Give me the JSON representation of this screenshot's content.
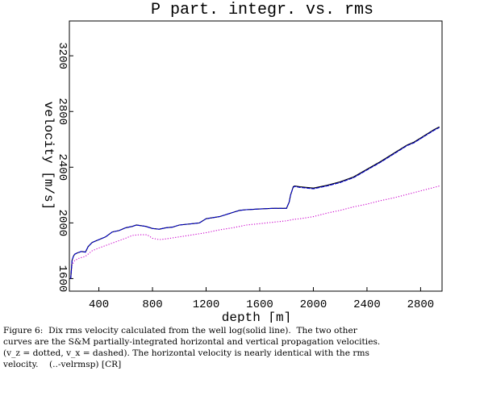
{
  "chart_data": {
    "type": "line",
    "title": "P part. integr. vs. rms",
    "xlabel": "depth [m]",
    "ylabel": "velocity [m/s]",
    "xlim": [
      180,
      2960
    ],
    "ylim": [
      1510,
      3450
    ],
    "x_ticks": [
      400,
      800,
      1200,
      1600,
      2000,
      2400,
      2800
    ],
    "y_ticks": [
      1600,
      2000,
      2400,
      2800,
      3200
    ],
    "grid": false,
    "legend": "none",
    "series": [
      {
        "style": "solid",
        "color": "#000000",
        "x": [
          190,
          200,
          210,
          220,
          240,
          270,
          300,
          320,
          350,
          400,
          450,
          500,
          550,
          600,
          650,
          680,
          750,
          800,
          850,
          900,
          950,
          1000,
          1100,
          1150,
          1200,
          1300,
          1400,
          1450,
          1500,
          1600,
          1700,
          1800,
          1820,
          1830,
          1840,
          1850,
          1860,
          1900,
          2000,
          2100,
          2200,
          2300,
          2400,
          2500,
          2600,
          2700,
          2750,
          2800,
          2900,
          2940
        ],
        "y": [
          1600,
          1730,
          1760,
          1775,
          1785,
          1795,
          1790,
          1830,
          1860,
          1880,
          1900,
          1935,
          1945,
          1965,
          1975,
          1985,
          1975,
          1960,
          1955,
          1965,
          1970,
          1985,
          1995,
          2000,
          2030,
          2045,
          2075,
          2090,
          2095,
          2100,
          2105,
          2105,
          2150,
          2200,
          2230,
          2260,
          2265,
          2260,
          2250,
          2270,
          2295,
          2330,
          2385,
          2440,
          2500,
          2560,
          2580,
          2610,
          2670,
          2690
        ]
      },
      {
        "style": "dashed",
        "color": "#0000cc",
        "x": [
          190,
          200,
          210,
          220,
          240,
          270,
          300,
          320,
          350,
          400,
          450,
          500,
          550,
          600,
          650,
          680,
          750,
          800,
          850,
          900,
          950,
          1000,
          1100,
          1150,
          1200,
          1300,
          1400,
          1450,
          1500,
          1600,
          1700,
          1800,
          1820,
          1830,
          1840,
          1850,
          1860,
          1900,
          2000,
          2100,
          2200,
          2300,
          2400,
          2500,
          2600,
          2700,
          2750,
          2800,
          2900,
          2940
        ],
        "y": [
          1600,
          1730,
          1760,
          1775,
          1785,
          1795,
          1790,
          1830,
          1860,
          1880,
          1900,
          1935,
          1945,
          1965,
          1975,
          1985,
          1975,
          1960,
          1955,
          1965,
          1970,
          1985,
          1995,
          2000,
          2030,
          2045,
          2075,
          2090,
          2095,
          2100,
          2105,
          2105,
          2150,
          2200,
          2230,
          2255,
          2262,
          2255,
          2245,
          2265,
          2290,
          2325,
          2380,
          2435,
          2495,
          2555,
          2575,
          2605,
          2665,
          2685
        ]
      },
      {
        "style": "dotted",
        "color": "#cc00cc",
        "x": [
          190,
          200,
          220,
          250,
          300,
          350,
          400,
          500,
          600,
          650,
          700,
          760,
          800,
          850,
          900,
          1000,
          1100,
          1200,
          1300,
          1400,
          1500,
          1600,
          1700,
          1800,
          1850,
          1900,
          2000,
          2100,
          2200,
          2300,
          2400,
          2500,
          2600,
          2700,
          2800,
          2900,
          2940
        ],
        "y": [
          1600,
          1700,
          1730,
          1745,
          1760,
          1800,
          1820,
          1855,
          1890,
          1910,
          1915,
          1915,
          1890,
          1880,
          1885,
          1900,
          1915,
          1930,
          1950,
          1965,
          1985,
          1995,
          2005,
          2015,
          2025,
          2030,
          2045,
          2070,
          2090,
          2115,
          2135,
          2160,
          2180,
          2205,
          2230,
          2255,
          2265
        ]
      }
    ]
  },
  "caption": {
    "lines": [
      "Figure 6:  Dix rms velocity calculated from the well log(solid line).  The two other",
      "curves are the S&M partially-integrated horizontal and vertical propagation velocities.",
      "(v_z = dotted, v_x = dashed). The horizontal velocity is nearly identical with the rms",
      "velocity.    (..-velrmsp) [CR]"
    ]
  }
}
